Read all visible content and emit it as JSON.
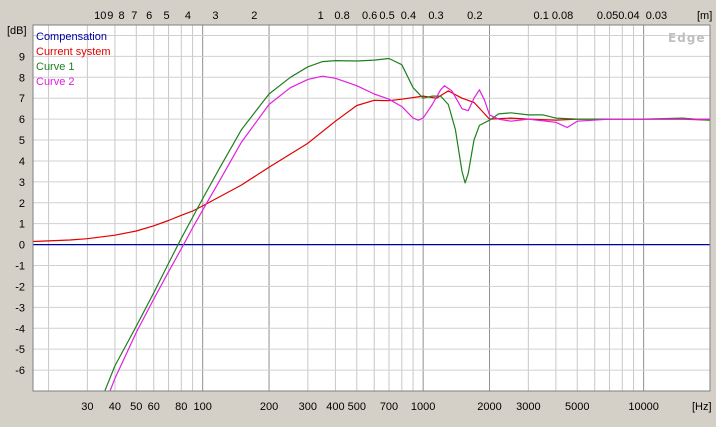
{
  "chart_data": {
    "type": "line",
    "watermark": "Edge",
    "y_unit_label": "[dB]",
    "x_unit_label": "[Hz]",
    "top_unit_label": "[m]",
    "x_scale": "log",
    "xlim": [
      17,
      20000
    ],
    "ylim": [
      -7,
      10.5
    ],
    "grid": true,
    "legend_position": "top-left",
    "x_ticks": [
      {
        "v": 30,
        "label": "30"
      },
      {
        "v": 40,
        "label": "40"
      },
      {
        "v": 50,
        "label": "50"
      },
      {
        "v": 60,
        "label": "60"
      },
      {
        "v": 80,
        "label": "80"
      },
      {
        "v": 100,
        "label": "100"
      },
      {
        "v": 200,
        "label": "200"
      },
      {
        "v": 300,
        "label": "300"
      },
      {
        "v": 400,
        "label": "400"
      },
      {
        "v": 500,
        "label": "500"
      },
      {
        "v": 700,
        "label": "700"
      },
      {
        "v": 1000,
        "label": "1000"
      },
      {
        "v": 2000,
        "label": "2000"
      },
      {
        "v": 3000,
        "label": "3000"
      },
      {
        "v": 5000,
        "label": "5000"
      },
      {
        "v": 10000,
        "label": "10000"
      }
    ],
    "top_ticks": [
      {
        "v": 10,
        "label": "10"
      },
      {
        "v": 9,
        "label": "9"
      },
      {
        "v": 8,
        "label": "8"
      },
      {
        "v": 7,
        "label": "7"
      },
      {
        "v": 6,
        "label": "6"
      },
      {
        "v": 5,
        "label": "5"
      },
      {
        "v": 4,
        "label": "4"
      },
      {
        "v": 3,
        "label": "3"
      },
      {
        "v": 2,
        "label": "2"
      },
      {
        "v": 1,
        "label": "1"
      },
      {
        "v": 0.8,
        "label": "0.8"
      },
      {
        "v": 0.6,
        "label": "0.6"
      },
      {
        "v": 0.5,
        "label": "0.5"
      },
      {
        "v": 0.4,
        "label": "0.4"
      },
      {
        "v": 0.3,
        "label": "0.3"
      },
      {
        "v": 0.2,
        "label": "0.2"
      },
      {
        "v": 0.1,
        "label": "0.1"
      },
      {
        "v": 0.08,
        "label": "0.08"
      },
      {
        "v": 0.05,
        "label": "0.05"
      },
      {
        "v": 0.04,
        "label": "0.04"
      },
      {
        "v": 0.03,
        "label": "0.03"
      }
    ],
    "y_ticks": [
      -6,
      -5,
      -4,
      -3,
      -2,
      -1,
      0,
      1,
      2,
      3,
      4,
      5,
      6,
      7,
      8,
      9
    ],
    "series": [
      {
        "name": "Compensation",
        "color": "#0000a0",
        "points": [
          [
            17,
            0
          ],
          [
            20000,
            0
          ]
        ]
      },
      {
        "name": "Current system",
        "color": "#e00000",
        "points": [
          [
            17,
            0.15
          ],
          [
            25,
            0.22
          ],
          [
            30,
            0.28
          ],
          [
            40,
            0.45
          ],
          [
            50,
            0.65
          ],
          [
            60,
            0.9
          ],
          [
            70,
            1.15
          ],
          [
            80,
            1.4
          ],
          [
            90,
            1.6
          ],
          [
            100,
            1.85
          ],
          [
            150,
            2.85
          ],
          [
            200,
            3.7
          ],
          [
            300,
            4.85
          ],
          [
            400,
            5.9
          ],
          [
            500,
            6.65
          ],
          [
            600,
            6.9
          ],
          [
            700,
            6.88
          ],
          [
            800,
            6.95
          ],
          [
            1000,
            7.1
          ],
          [
            1150,
            7.0
          ],
          [
            1300,
            7.35
          ],
          [
            1500,
            7.0
          ],
          [
            1700,
            6.8
          ],
          [
            2000,
            6.0
          ],
          [
            2500,
            6.05
          ],
          [
            3000,
            6.0
          ],
          [
            4000,
            5.95
          ],
          [
            5000,
            6.0
          ],
          [
            7000,
            6.0
          ],
          [
            10000,
            6.0
          ],
          [
            15000,
            6.0
          ],
          [
            20000,
            5.95
          ]
        ]
      },
      {
        "name": "Curve 1",
        "color": "#208020",
        "points": [
          [
            36,
            -7.0
          ],
          [
            40,
            -5.8
          ],
          [
            50,
            -3.9
          ],
          [
            60,
            -2.3
          ],
          [
            70,
            -0.9
          ],
          [
            80,
            0.3
          ],
          [
            90,
            1.3
          ],
          [
            100,
            2.2
          ],
          [
            120,
            3.7
          ],
          [
            150,
            5.5
          ],
          [
            200,
            7.2
          ],
          [
            250,
            8.0
          ],
          [
            300,
            8.5
          ],
          [
            350,
            8.75
          ],
          [
            400,
            8.8
          ],
          [
            500,
            8.78
          ],
          [
            600,
            8.82
          ],
          [
            700,
            8.9
          ],
          [
            800,
            8.6
          ],
          [
            900,
            7.5
          ],
          [
            1000,
            7.0
          ],
          [
            1100,
            7.1
          ],
          [
            1200,
            7.1
          ],
          [
            1300,
            6.7
          ],
          [
            1400,
            5.5
          ],
          [
            1500,
            3.5
          ],
          [
            1550,
            2.95
          ],
          [
            1600,
            3.4
          ],
          [
            1700,
            5.0
          ],
          [
            1800,
            5.7
          ],
          [
            2000,
            5.95
          ],
          [
            2200,
            6.25
          ],
          [
            2500,
            6.3
          ],
          [
            3000,
            6.2
          ],
          [
            3500,
            6.2
          ],
          [
            4000,
            6.05
          ],
          [
            5000,
            6.0
          ],
          [
            7000,
            6.0
          ],
          [
            10000,
            6.0
          ],
          [
            15000,
            6.05
          ],
          [
            20000,
            5.95
          ]
        ]
      },
      {
        "name": "Curve 2",
        "color": "#e020e0",
        "points": [
          [
            38,
            -7.0
          ],
          [
            40,
            -6.4
          ],
          [
            50,
            -4.2
          ],
          [
            60,
            -2.6
          ],
          [
            70,
            -1.3
          ],
          [
            80,
            -0.2
          ],
          [
            90,
            0.8
          ],
          [
            100,
            1.65
          ],
          [
            120,
            3.1
          ],
          [
            150,
            4.9
          ],
          [
            200,
            6.7
          ],
          [
            250,
            7.5
          ],
          [
            300,
            7.9
          ],
          [
            350,
            8.05
          ],
          [
            400,
            7.95
          ],
          [
            500,
            7.6
          ],
          [
            600,
            7.2
          ],
          [
            700,
            6.95
          ],
          [
            800,
            6.6
          ],
          [
            900,
            6.05
          ],
          [
            950,
            5.95
          ],
          [
            1000,
            6.05
          ],
          [
            1100,
            6.7
          ],
          [
            1200,
            7.4
          ],
          [
            1250,
            7.6
          ],
          [
            1350,
            7.35
          ],
          [
            1500,
            6.5
          ],
          [
            1600,
            6.4
          ],
          [
            1700,
            7.0
          ],
          [
            1800,
            7.4
          ],
          [
            1900,
            6.9
          ],
          [
            2000,
            6.2
          ],
          [
            2200,
            6.0
          ],
          [
            2500,
            5.9
          ],
          [
            3000,
            6.0
          ],
          [
            4000,
            5.85
          ],
          [
            4500,
            5.6
          ],
          [
            5000,
            5.9
          ],
          [
            7000,
            6.0
          ],
          [
            10000,
            6.0
          ],
          [
            15000,
            6.0
          ],
          [
            20000,
            6.0
          ]
        ]
      }
    ]
  }
}
